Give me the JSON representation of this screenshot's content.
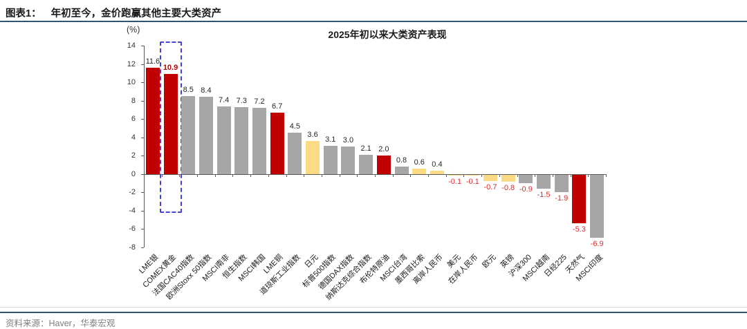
{
  "figure": {
    "label": "图表1：",
    "title": "年初至今，金价跑赢其他主要大类资产",
    "source": "资料来源：Haver，华泰宏观",
    "rule_color": "#2F5573"
  },
  "chart_data": {
    "type": "bar",
    "title": "2025年初以来大类资产表现",
    "unit_label": "(%)",
    "ylim": [
      -8,
      14
    ],
    "ytick_step": 2,
    "grid": false,
    "legend": "none",
    "categories": [
      "LME银",
      "COMEX黄金",
      "法国CAC40指数",
      "欧洲Stoxx 50指数",
      "MSCI南非",
      "恒生指数",
      "MSCI韩国",
      "LME铜",
      "道琼斯工业指数",
      "日元",
      "标普500指数",
      "德国DAX指数",
      "纳斯达克综合指数",
      "布伦特原油",
      "MSCI台湾",
      "墨西哥比索",
      "离岸人民币",
      "美元",
      "在岸人民币",
      "欧元",
      "英镑",
      "沪深300",
      "MSCI越南",
      "日经225",
      "天然气",
      "MSCI印度"
    ],
    "values": [
      11.6,
      10.9,
      8.5,
      8.4,
      7.4,
      7.3,
      7.2,
      6.7,
      4.5,
      3.6,
      3.1,
      3.0,
      2.1,
      2.0,
      0.8,
      0.6,
      0.4,
      -0.1,
      -0.1,
      -0.7,
      -0.8,
      -0.9,
      -1.5,
      -1.9,
      -5.3,
      -6.9
    ],
    "groups": [
      "commodity",
      "commodity",
      "equity",
      "equity",
      "equity",
      "equity",
      "equity",
      "commodity",
      "equity",
      "currency",
      "equity",
      "equity",
      "equity",
      "commodity",
      "equity",
      "currency",
      "currency",
      "currency",
      "currency",
      "currency",
      "currency",
      "equity",
      "equity",
      "equity",
      "commodity",
      "equity"
    ],
    "palette": {
      "commodity": "#C00000",
      "equity": "#A6A6A6",
      "currency": "#FBDC84"
    },
    "value_label_colors": {
      "positive": "#262626",
      "negative": "#E02B2B"
    },
    "highlight": {
      "category": "COMEX黄金",
      "box_color": "#4141E1",
      "label_color": "#C00000"
    }
  }
}
